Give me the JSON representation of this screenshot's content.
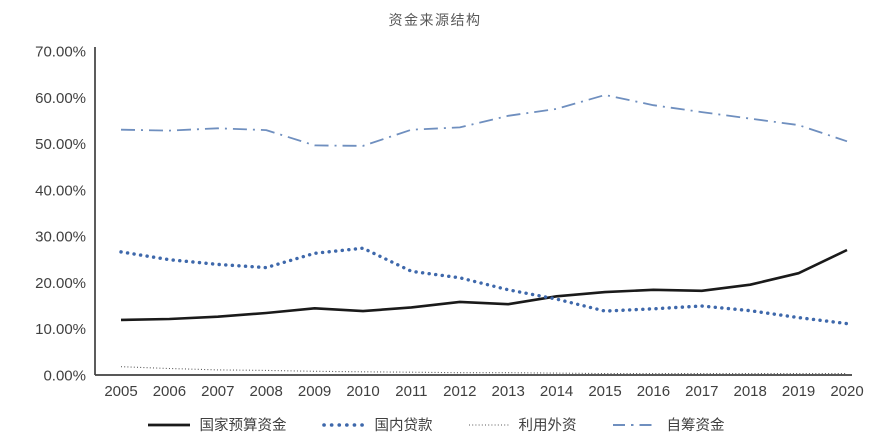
{
  "chart_data": {
    "type": "line",
    "title": "资金来源结构",
    "x": [
      "2005",
      "2006",
      "2007",
      "2008",
      "2009",
      "2010",
      "2011",
      "2012",
      "2013",
      "2014",
      "2015",
      "2016",
      "2017",
      "2018",
      "2019",
      "2020"
    ],
    "series": [
      {
        "name": "国家预算资金",
        "style": "solid",
        "color": "#1a1a1a",
        "values": [
          11.9,
          12.1,
          12.6,
          13.4,
          14.4,
          13.8,
          14.6,
          15.8,
          15.3,
          17.0,
          17.9,
          18.4,
          18.2,
          19.5,
          22.0,
          27.0
        ]
      },
      {
        "name": "国内贷款",
        "style": "dot",
        "color": "#3e68ab",
        "values": [
          26.6,
          24.9,
          23.9,
          23.2,
          26.3,
          27.4,
          22.4,
          21.0,
          18.4,
          16.4,
          13.8,
          14.3,
          14.9,
          13.9,
          12.4,
          11.1
        ]
      },
      {
        "name": "利用外资",
        "style": "fine-dot",
        "color": "#595959",
        "values": [
          1.8,
          1.4,
          1.1,
          1.0,
          0.8,
          0.7,
          0.6,
          0.5,
          0.5,
          0.4,
          0.3,
          0.3,
          0.3,
          0.3,
          0.3,
          0.3
        ]
      },
      {
        "name": "自筹资金",
        "style": "dash-dot",
        "color": "#6f8fbf",
        "values": [
          53.0,
          52.8,
          53.3,
          52.9,
          49.6,
          49.5,
          53.0,
          53.5,
          56.0,
          57.5,
          60.5,
          58.3,
          56.8,
          55.4,
          54.0,
          50.5
        ]
      }
    ],
    "ylim": [
      0,
      70
    ],
    "ytick_labels": [
      "70.00%",
      "60.00%",
      "50.00%",
      "40.00%",
      "30.00%",
      "20.00%",
      "10.00%",
      "0.00%"
    ],
    "ytick_values": [
      70,
      60,
      50,
      40,
      30,
      20,
      10,
      0
    ],
    "grid": false,
    "legend_position": "bottom",
    "axis_color": "#404040",
    "text_color": "#404040",
    "title_color": "#595959"
  }
}
